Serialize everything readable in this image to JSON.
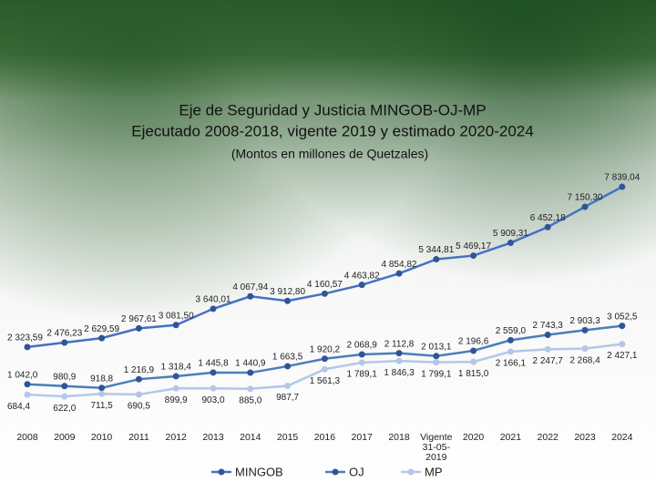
{
  "chart_data": {
    "type": "line",
    "title": [
      "Eje de Seguridad y Justicia MINGOB-OJ-MP",
      "Ejecutado 2008-2018, vigente 2019 y estimado 2020-2024"
    ],
    "subtitle": "(Montos en millones de Quetzales)",
    "categories": [
      "2008",
      "2009",
      "2010",
      "2011",
      "2012",
      "2013",
      "2014",
      "2015",
      "2016",
      "2017",
      "2018",
      "Vigente 31-05-2019",
      "2020",
      "2021",
      "2022",
      "2023",
      "2024"
    ],
    "series": [
      {
        "name": "MINGOB",
        "color": "#4472c4",
        "marker": "#2f5597",
        "values": [
          2323.59,
          2476.23,
          2629.59,
          2967.61,
          3081.5,
          3640.01,
          4067.94,
          3912.8,
          4160.57,
          4463.82,
          4854.82,
          5344.81,
          5469.17,
          5909.31,
          6452.18,
          7150.3,
          7839.04
        ],
        "value_labels": [
          "2 323,59",
          "2 476,23",
          "2 629,59",
          "2 967,61",
          "3 081,50",
          "3 640,01",
          "4 067,94",
          "3 912,80",
          "4 160,57",
          "4 463,82",
          "4 854,82",
          "5 344,81",
          "5 469,17",
          "5 909,31",
          "6 452,18",
          "7 150,30",
          "7 839,04"
        ]
      },
      {
        "name": "OJ",
        "color": "#4a7ebb",
        "marker": "#2f5597",
        "values": [
          1042.0,
          980.9,
          918.8,
          1216.9,
          1318.4,
          1445.8,
          1440.9,
          1663.5,
          1920.2,
          2068.9,
          2112.8,
          2013.1,
          2196.6,
          2559.0,
          2743.3,
          2903.3,
          3052.5
        ],
        "value_labels": [
          "1 042,0",
          "980,9",
          "918,8",
          "1 216,9",
          "1 318,4",
          "1 445,8",
          "1 440,9",
          "1 663,5",
          "1 920,2",
          "2 068,9",
          "2 112,8",
          "2 013,1",
          "2 196,6",
          "2 559,0",
          "2 743,3",
          "2 903,3",
          "3 052,5"
        ]
      },
      {
        "name": "MP",
        "color": "#b4c7e7",
        "marker": "#b4c7e7",
        "values": [
          684.4,
          622.0,
          711.5,
          690.5,
          899.9,
          903.0,
          885.0,
          987.7,
          1561.3,
          1789.1,
          1846.3,
          1799.1,
          1815.0,
          2166.1,
          2247.7,
          2268.4,
          2427.1
        ],
        "value_labels": [
          "684,4",
          "622,0",
          "711,5",
          "690,5",
          "899,9",
          "903,0",
          "885,0",
          "987,7",
          "1 561,3",
          "1 789,1",
          "1 846,3",
          "1 799,1",
          "1 815,0",
          "2 166,1",
          "2 247,7",
          "2 268,4",
          "2 427,1"
        ]
      }
    ]
  }
}
